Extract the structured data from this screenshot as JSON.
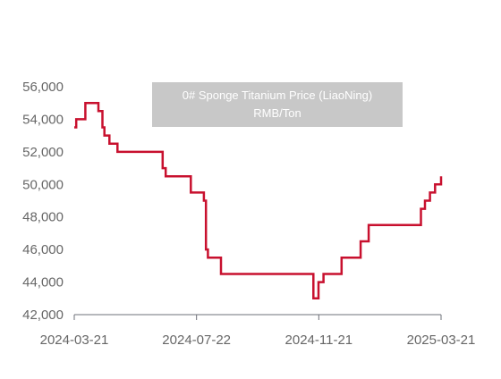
{
  "chart_data": {
    "type": "line",
    "title": "0# Sponge Titanium Price (LiaoNing)",
    "subtitle": "RMB/Ton",
    "step": true,
    "line_color": "#c8102e",
    "legend_bg": "#c8c8c8",
    "x_start": "2024-03-21",
    "x_end": "2025-03-21",
    "xlim": [
      "2024-03-21",
      "2025-03-21"
    ],
    "x_tick_labels": [
      "2024-03-21",
      "2024-07-22",
      "2024-11-21",
      "2025-03-21"
    ],
    "ylim": [
      42000,
      56000
    ],
    "y_tick_labels": [
      "42,000",
      "44,000",
      "46,000",
      "48,000",
      "50,000",
      "52,000",
      "54,000",
      "56,000"
    ],
    "grid": false,
    "series": [
      {
        "x": [
          "2024-03-21",
          "2024-03-23",
          "2024-04-01",
          "2024-04-14",
          "2024-04-18",
          "2024-04-20",
          "2024-04-25",
          "2024-05-03",
          "2024-06-12",
          "2024-06-17",
          "2024-06-20",
          "2024-06-28",
          "2024-07-15",
          "2024-07-28",
          "2024-07-30",
          "2024-08-01",
          "2024-08-07",
          "2024-08-14",
          "2024-09-01",
          "2024-10-20",
          "2024-11-14",
          "2024-11-17",
          "2024-11-19",
          "2024-11-24",
          "2024-12-12",
          "2024-12-31",
          "2025-01-08",
          "2025-02-16",
          "2025-03-01",
          "2025-03-05",
          "2025-03-10",
          "2025-03-15",
          "2025-03-21"
        ],
        "y": [
          53500,
          54000,
          55000,
          54500,
          53500,
          53000,
          52500,
          52000,
          52000,
          51000,
          50500,
          50500,
          49500,
          49000,
          46000,
          45500,
          45500,
          44500,
          44500,
          44500,
          43000,
          43000,
          44000,
          44500,
          45500,
          46500,
          47500,
          47500,
          48500,
          49000,
          49500,
          50000,
          50500
        ]
      }
    ]
  }
}
